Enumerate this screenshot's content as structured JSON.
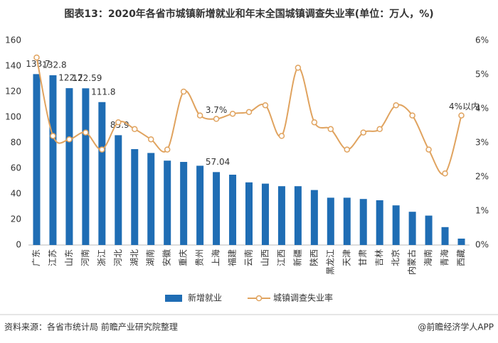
{
  "chart_data": {
    "type": "bar-line",
    "title": "图表13：2020年各省市城镇新增就业和年末全国城镇调查失业率(单位：万人，%)",
    "categories": [
      "广东",
      "江苏",
      "山东",
      "河南",
      "浙江",
      "河北",
      "湖北",
      "湖南",
      "安徽",
      "重庆",
      "贵州",
      "上海",
      "福建",
      "云南",
      "山西",
      "江西",
      "新疆",
      "陕西",
      "黑龙江",
      "天津",
      "甘肃",
      "吉林",
      "北京",
      "内蒙古",
      "海南",
      "青海",
      "西藏"
    ],
    "series": [
      {
        "name": "新增就业",
        "type": "bar",
        "color": "#1f6db4",
        "values": [
          133.7,
          132.8,
          122.7,
          122.59,
          111.8,
          85.9,
          75,
          72,
          66,
          65,
          62,
          57.04,
          55,
          49,
          48,
          46,
          46,
          43,
          37,
          37,
          36,
          35,
          31,
          26,
          23,
          14,
          5
        ],
        "value_labels": [
          "133.7",
          "132.8",
          "122.7",
          "122.59",
          "111.8",
          "85.9",
          null,
          null,
          null,
          null,
          null,
          "57.04",
          null,
          null,
          null,
          null,
          null,
          null,
          null,
          null,
          null,
          null,
          null,
          null,
          null,
          null,
          null
        ]
      },
      {
        "name": "城镇调查失业率",
        "type": "line",
        "axis": "y2",
        "color": "#e0a35f",
        "values": [
          5.5,
          3.2,
          3.1,
          3.3,
          2.8,
          3.6,
          3.4,
          3.1,
          2.8,
          4.5,
          3.8,
          3.7,
          3.85,
          3.9,
          4.1,
          3.2,
          5.2,
          3.6,
          3.4,
          2.8,
          3.3,
          3.4,
          4.1,
          3.8,
          2.8,
          2.1,
          3.8
        ],
        "value_labels": [
          null,
          null,
          null,
          null,
          null,
          null,
          null,
          null,
          null,
          null,
          null,
          "3.7%",
          null,
          null,
          null,
          null,
          null,
          null,
          null,
          null,
          null,
          null,
          null,
          null,
          null,
          null,
          null
        ]
      }
    ],
    "annotation": "4%以内",
    "ylim": [
      0,
      160
    ],
    "yticks": [
      0,
      20,
      40,
      60,
      80,
      100,
      120,
      140,
      160
    ],
    "y2lim": [
      0,
      6
    ],
    "y2ticks": [
      {
        "value": 0,
        "label": "0%"
      },
      {
        "value": 1,
        "label": "1%"
      },
      {
        "value": 2,
        "label": "2%"
      },
      {
        "value": 3,
        "label": "3%"
      },
      {
        "value": 4,
        "label": "4%"
      },
      {
        "value": 5,
        "label": "5%"
      },
      {
        "value": 6,
        "label": "6%"
      }
    ],
    "legend": "bottom",
    "source": "资料来源：各省市统计局 前瞻产业研究院整理",
    "brand": "@前瞻经济学人APP"
  }
}
